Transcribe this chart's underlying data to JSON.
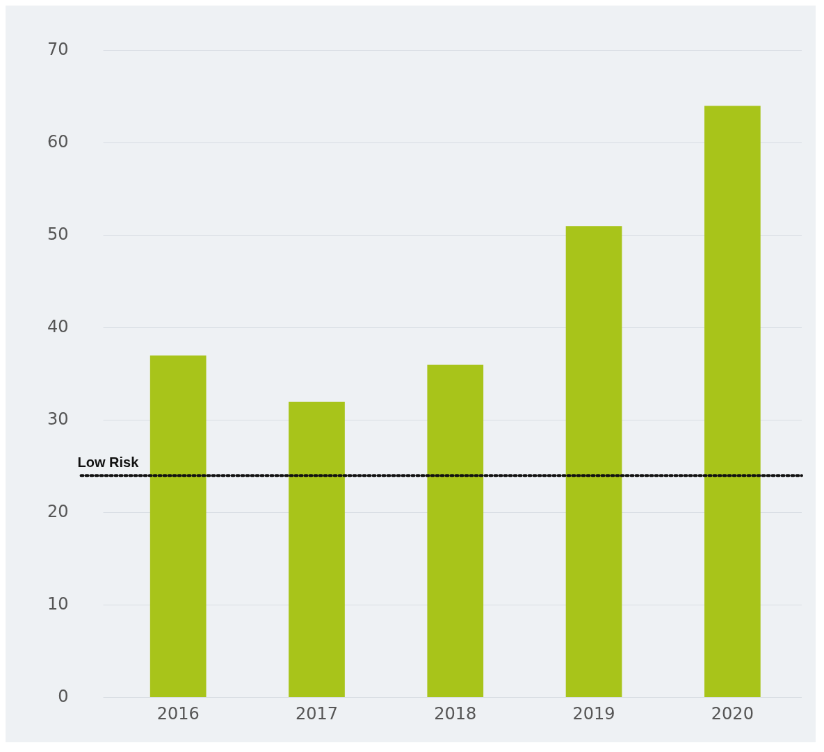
{
  "chart_data": {
    "type": "bar",
    "categories": [
      "2016",
      "2017",
      "2018",
      "2019",
      "2020"
    ],
    "values": [
      37,
      32,
      36,
      51,
      64
    ],
    "color": "#a8c41a",
    "ylim": [
      0,
      70
    ],
    "yticks": [
      0,
      10,
      20,
      30,
      40,
      50,
      60,
      70
    ],
    "grid": "y",
    "legend": false,
    "ref_lines": [
      {
        "axis": "y",
        "value": 24,
        "label": "Low Risk",
        "color": "#111111",
        "line_style": "dotted"
      }
    ]
  }
}
